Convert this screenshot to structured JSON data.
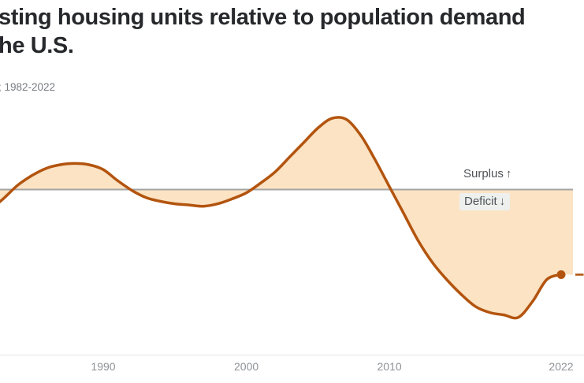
{
  "title": {
    "line1": "sting housing units relative to population demand",
    "line2": "he U.S."
  },
  "subtitle": "; 1982-2022",
  "annotations": {
    "surplus": "Surplus ↑",
    "deficit": "Deficit ↓"
  },
  "x_axis": {
    "tick_labels": [
      "1990",
      "2000",
      "2010",
      "2022"
    ]
  },
  "colors": {
    "line": "#b3540e",
    "area_fill": "#fbe3c4",
    "baseline": "#a4a4a4",
    "axis_line": "#e3e3e3",
    "title_text": "#26282b",
    "subtitle_text": "#767b80",
    "tick_text": "#8d9297",
    "annotation_text": "#4e5358",
    "deficit_chip_bg": "#eef0ee"
  },
  "chart_data": {
    "type": "area",
    "title": "sting housing units relative to population demand he U.S.",
    "subtitle": "; 1982-2022",
    "xlabel": "",
    "ylabel": "",
    "note": "y-axis scale not visible in image; values are relative estimates with baseline = 0 (surplus positive, deficit negative)",
    "baseline": 0,
    "grid": false,
    "legend": false,
    "x_ticks": [
      1990,
      2000,
      2010,
      2022
    ],
    "x": [
      1982,
      1983,
      1984,
      1985,
      1986,
      1987,
      1988,
      1989,
      1990,
      1991,
      1992,
      1993,
      1994,
      1995,
      1996,
      1997,
      1998,
      1999,
      2000,
      2001,
      2002,
      2003,
      2004,
      2005,
      2006,
      2007,
      2008,
      2009,
      2010,
      2011,
      2012,
      2013,
      2014,
      2015,
      2016,
      2017,
      2018,
      2019,
      2020,
      2021,
      2022
    ],
    "values": [
      -0.9,
      -0.4,
      0.15,
      0.55,
      0.85,
      1.0,
      1.05,
      1.0,
      0.8,
      0.35,
      -0.05,
      -0.35,
      -0.5,
      -0.6,
      -0.65,
      -0.7,
      -0.6,
      -0.4,
      -0.15,
      0.25,
      0.7,
      1.3,
      1.9,
      2.5,
      2.9,
      2.85,
      2.2,
      1.2,
      0.1,
      -1.0,
      -2.1,
      -3.0,
      -3.7,
      -4.3,
      -4.8,
      -5.05,
      -5.15,
      -5.25,
      -4.6,
      -3.7,
      -3.5
    ],
    "end_point": {
      "x": 2022,
      "value": -3.5
    }
  }
}
